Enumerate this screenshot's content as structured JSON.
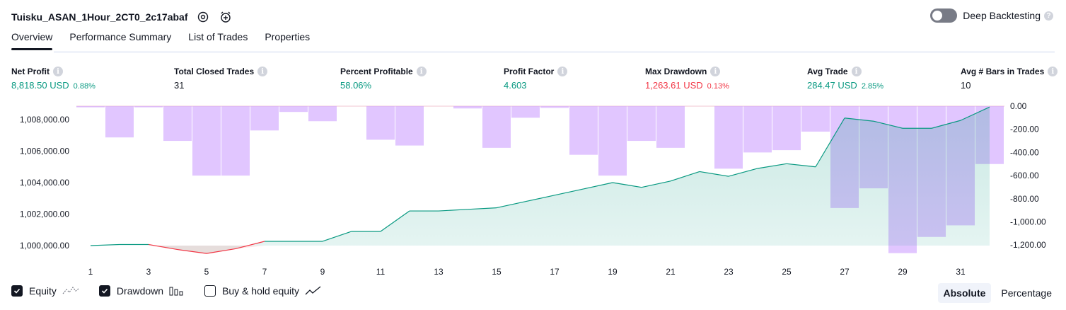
{
  "header": {
    "title": "Tuisku_ASAN_1Hour_2CT0_2c17abaf"
  },
  "deep_backtesting": {
    "label": "Deep Backtesting",
    "enabled": false
  },
  "tabs": [
    {
      "label": "Overview",
      "active": true
    },
    {
      "label": "Performance Summary",
      "active": false
    },
    {
      "label": "List of Trades",
      "active": false
    },
    {
      "label": "Properties",
      "active": false
    }
  ],
  "metrics": [
    {
      "label": "Net Profit",
      "value": "8,818.50 USD",
      "pct": "0.88%",
      "tone": "pos"
    },
    {
      "label": "Total Closed Trades",
      "value": "31",
      "pct": "",
      "tone": "neu"
    },
    {
      "label": "Percent Profitable",
      "value": "58.06%",
      "pct": "",
      "tone": "pos"
    },
    {
      "label": "Profit Factor",
      "value": "4.603",
      "pct": "",
      "tone": "pos"
    },
    {
      "label": "Max Drawdown",
      "value": "1,263.61 USD",
      "pct": "0.13%",
      "tone": "neg"
    },
    {
      "label": "Avg Trade",
      "value": "284.47 USD",
      "pct": "2.85%",
      "tone": "pos"
    },
    {
      "label": "Avg # Bars in Trades",
      "value": "10",
      "pct": "",
      "tone": "neu"
    }
  ],
  "chart_data": {
    "type": "line",
    "x": [
      1,
      2,
      3,
      4,
      5,
      6,
      7,
      8,
      9,
      10,
      11,
      12,
      13,
      14,
      15,
      16,
      17,
      18,
      19,
      20,
      21,
      22,
      23,
      24,
      25,
      26,
      27,
      28,
      29,
      30,
      31,
      32
    ],
    "x_ticks": [
      "1",
      "3",
      "5",
      "7",
      "9",
      "11",
      "13",
      "15",
      "17",
      "19",
      "21",
      "23",
      "25",
      "27",
      "29",
      "31"
    ],
    "left_axis": {
      "ylim": [
        999000,
        1008800
      ],
      "ticks": [
        "1,000,000.00",
        "1,002,000.00",
        "1,004,000.00",
        "1,006,000.00",
        "1,008,000.00"
      ]
    },
    "right_axis": {
      "ylim": [
        -1280,
        0
      ],
      "ticks": [
        "0.00",
        "-200.00",
        "-400.00",
        "-600.00",
        "-800.00",
        "-1,000.00",
        "-1,200.00"
      ]
    },
    "series": [
      {
        "name": "Equity",
        "axis": "left",
        "type": "area",
        "values": [
          1000000,
          1000070,
          1000070,
          999750,
          999500,
          999800,
          1000270,
          1000270,
          1000270,
          1000900,
          1000900,
          1002200,
          1002200,
          1002300,
          1002400,
          1002800,
          1003200,
          1003600,
          1004000,
          1003700,
          1004100,
          1004700,
          1004400,
          1004900,
          1005200,
          1005000,
          1008100,
          1007900,
          1007450,
          1007450,
          1007950,
          1008800
        ],
        "color": "#089981",
        "negative_color": "#f23645"
      },
      {
        "name": "Drawdown",
        "axis": "right",
        "type": "bar",
        "values": [
          -10,
          -270,
          -10,
          -300,
          -600,
          -600,
          -210,
          -50,
          -130,
          0,
          -290,
          -340,
          0,
          -20,
          -360,
          -100,
          -15,
          -420,
          -600,
          -300,
          -360,
          0,
          -540,
          -400,
          -380,
          -220,
          -880,
          -710,
          -1270,
          -1130,
          -1030,
          -500
        ],
        "color": "#cfa3ff"
      }
    ],
    "legend": [
      "Equity",
      "Drawdown",
      "Buy & hold equity"
    ]
  },
  "footer": {
    "toggles": [
      {
        "label": "Equity",
        "checked": true,
        "icon": "equity-line-icon"
      },
      {
        "label": "Drawdown",
        "checked": true,
        "icon": "drawdown-bars-icon"
      },
      {
        "label": "Buy & hold equity",
        "checked": false,
        "icon": "buy-hold-line-icon"
      }
    ],
    "modes": [
      {
        "label": "Absolute",
        "active": true
      },
      {
        "label": "Percentage",
        "active": false
      }
    ]
  }
}
